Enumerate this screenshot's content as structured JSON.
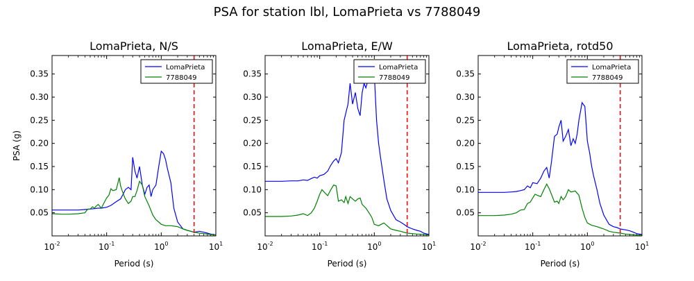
{
  "figure": {
    "title": "PSA for station lbl, LomaPrieta vs 7788049"
  },
  "chart_data": [
    {
      "type": "line",
      "title": "LomaPrieta, N/S",
      "xlabel": "Period (s)",
      "ylabel": "PSA (g)",
      "xscale": "log",
      "xlim": [
        0.01,
        10
      ],
      "ylim": [
        0.0,
        0.39
      ],
      "x_tick_labels": [
        "10^-2",
        "10^-1",
        "10^0",
        "10^1"
      ],
      "y_ticks": [
        0.05,
        0.1,
        0.15,
        0.2,
        0.25,
        0.3,
        0.35
      ],
      "y_tick_labels": [
        "0.05",
        "0.10",
        "0.15",
        "0.20",
        "0.25",
        "0.30",
        "0.35"
      ],
      "grid": false,
      "legend_position": "top-right",
      "vline": {
        "x": 4.0,
        "color": "#ff0000",
        "style": "dashed"
      },
      "series": [
        {
          "name": "LomaPrieta",
          "color": "#0000ff",
          "x": [
            0.01,
            0.02,
            0.03,
            0.04,
            0.05,
            0.06,
            0.07,
            0.08,
            0.1,
            0.12,
            0.15,
            0.18,
            0.2,
            0.22,
            0.25,
            0.28,
            0.3,
            0.33,
            0.36,
            0.4,
            0.45,
            0.5,
            0.55,
            0.6,
            0.65,
            0.7,
            0.8,
            0.9,
            1.0,
            1.1,
            1.2,
            1.3,
            1.5,
            1.7,
            2.0,
            2.5,
            3.0,
            3.5,
            4.0,
            5.0,
            6.0,
            7.0,
            8.0,
            10.0
          ],
          "y": [
            0.056,
            0.056,
            0.056,
            0.057,
            0.058,
            0.059,
            0.06,
            0.06,
            0.062,
            0.066,
            0.074,
            0.08,
            0.09,
            0.1,
            0.105,
            0.1,
            0.17,
            0.14,
            0.125,
            0.15,
            0.11,
            0.09,
            0.105,
            0.11,
            0.085,
            0.1,
            0.11,
            0.15,
            0.183,
            0.178,
            0.165,
            0.145,
            0.115,
            0.06,
            0.03,
            0.015,
            0.012,
            0.01,
            0.008,
            0.01,
            0.008,
            0.006,
            0.004,
            0.002
          ]
        },
        {
          "name": "7788049",
          "color": "#008000",
          "x": [
            0.01,
            0.015,
            0.02,
            0.03,
            0.04,
            0.045,
            0.05,
            0.055,
            0.06,
            0.065,
            0.07,
            0.08,
            0.09,
            0.1,
            0.11,
            0.12,
            0.13,
            0.15,
            0.17,
            0.18,
            0.2,
            0.22,
            0.25,
            0.28,
            0.3,
            0.33,
            0.36,
            0.4,
            0.45,
            0.5,
            0.6,
            0.7,
            0.8,
            0.9,
            1.0,
            1.2,
            1.5,
            2.0,
            2.5,
            3.0,
            4.0,
            5.0,
            6.0,
            8.0,
            10.0
          ],
          "y": [
            0.048,
            0.047,
            0.047,
            0.048,
            0.05,
            0.058,
            0.058,
            0.063,
            0.06,
            0.065,
            0.068,
            0.06,
            0.072,
            0.082,
            0.088,
            0.102,
            0.098,
            0.1,
            0.126,
            0.108,
            0.092,
            0.08,
            0.07,
            0.075,
            0.085,
            0.085,
            0.098,
            0.118,
            0.11,
            0.085,
            0.065,
            0.045,
            0.035,
            0.03,
            0.025,
            0.022,
            0.022,
            0.02,
            0.015,
            0.012,
            0.008,
            0.006,
            0.005,
            0.003,
            0.002
          ]
        }
      ]
    },
    {
      "type": "line",
      "title": "LomaPrieta, E/W",
      "xlabel": "Period (s)",
      "xscale": "log",
      "xlim": [
        0.01,
        10
      ],
      "ylim": [
        0.0,
        0.39
      ],
      "x_tick_labels": [
        "10^-2",
        "10^-1",
        "10^0",
        "10^1"
      ],
      "y_ticks": [
        0.05,
        0.1,
        0.15,
        0.2,
        0.25,
        0.3,
        0.35
      ],
      "y_tick_labels": [
        "0.05",
        "0.10",
        "0.15",
        "0.20",
        "0.25",
        "0.30",
        "0.35"
      ],
      "grid": false,
      "legend_position": "top-right",
      "vline": {
        "x": 4.0,
        "color": "#ff0000",
        "style": "dashed"
      },
      "series": [
        {
          "name": "LomaPrieta",
          "color": "#0000ff",
          "x": [
            0.01,
            0.02,
            0.03,
            0.04,
            0.05,
            0.06,
            0.07,
            0.08,
            0.09,
            0.1,
            0.12,
            0.14,
            0.16,
            0.18,
            0.2,
            0.22,
            0.25,
            0.28,
            0.3,
            0.33,
            0.36,
            0.4,
            0.45,
            0.5,
            0.55,
            0.6,
            0.65,
            0.7,
            0.8,
            0.9,
            1.0,
            1.1,
            1.2,
            1.3,
            1.5,
            1.7,
            2.0,
            2.5,
            3.0,
            3.5,
            4.0,
            5.0,
            6.0,
            7.0,
            8.0,
            10.0
          ],
          "y": [
            0.118,
            0.118,
            0.119,
            0.119,
            0.121,
            0.12,
            0.124,
            0.127,
            0.125,
            0.13,
            0.133,
            0.14,
            0.153,
            0.162,
            0.167,
            0.158,
            0.18,
            0.25,
            0.265,
            0.285,
            0.33,
            0.285,
            0.31,
            0.275,
            0.26,
            0.31,
            0.33,
            0.32,
            0.345,
            0.38,
            0.35,
            0.25,
            0.2,
            0.17,
            0.12,
            0.08,
            0.055,
            0.035,
            0.03,
            0.025,
            0.02,
            0.015,
            0.012,
            0.01,
            0.006,
            0.003
          ]
        },
        {
          "name": "7788049",
          "color": "#008000",
          "x": [
            0.01,
            0.02,
            0.03,
            0.04,
            0.05,
            0.06,
            0.07,
            0.08,
            0.09,
            0.1,
            0.11,
            0.12,
            0.14,
            0.16,
            0.18,
            0.2,
            0.22,
            0.25,
            0.28,
            0.3,
            0.33,
            0.36,
            0.4,
            0.45,
            0.5,
            0.55,
            0.6,
            0.7,
            0.8,
            0.9,
            1.0,
            1.2,
            1.5,
            2.0,
            2.5,
            3.0,
            4.0,
            5.0,
            6.0,
            8.0,
            10.0
          ],
          "y": [
            0.042,
            0.042,
            0.043,
            0.045,
            0.048,
            0.044,
            0.05,
            0.06,
            0.075,
            0.09,
            0.1,
            0.095,
            0.087,
            0.1,
            0.11,
            0.108,
            0.075,
            0.078,
            0.072,
            0.085,
            0.07,
            0.085,
            0.08,
            0.075,
            0.08,
            0.082,
            0.068,
            0.06,
            0.05,
            0.04,
            0.025,
            0.022,
            0.028,
            0.015,
            0.012,
            0.01,
            0.006,
            0.005,
            0.004,
            0.003,
            0.002
          ]
        }
      ]
    },
    {
      "type": "line",
      "title": "LomaPrieta, rotd50",
      "xlabel": "Period (s)",
      "xscale": "log",
      "xlim": [
        0.01,
        10
      ],
      "ylim": [
        0.0,
        0.39
      ],
      "x_tick_labels": [
        "10^-2",
        "10^-1",
        "10^0",
        "10^1"
      ],
      "y_ticks": [
        0.05,
        0.1,
        0.15,
        0.2,
        0.25,
        0.3,
        0.35
      ],
      "y_tick_labels": [
        "0.05",
        "0.10",
        "0.15",
        "0.20",
        "0.25",
        "0.30",
        "0.35"
      ],
      "grid": false,
      "legend_position": "top-right",
      "vline": {
        "x": 4.0,
        "color": "#ff0000",
        "style": "dashed"
      },
      "series": [
        {
          "name": "LomaPrieta",
          "color": "#0000ff",
          "x": [
            0.01,
            0.02,
            0.03,
            0.04,
            0.05,
            0.06,
            0.07,
            0.08,
            0.09,
            0.1,
            0.12,
            0.14,
            0.16,
            0.18,
            0.2,
            0.22,
            0.25,
            0.28,
            0.3,
            0.33,
            0.36,
            0.4,
            0.45,
            0.5,
            0.55,
            0.6,
            0.65,
            0.7,
            0.8,
            0.9,
            1.0,
            1.1,
            1.2,
            1.3,
            1.5,
            1.7,
            2.0,
            2.5,
            3.0,
            3.5,
            4.0,
            5.0,
            6.0,
            7.0,
            8.0,
            10.0
          ],
          "y": [
            0.094,
            0.094,
            0.094,
            0.095,
            0.096,
            0.098,
            0.1,
            0.108,
            0.104,
            0.115,
            0.113,
            0.125,
            0.14,
            0.148,
            0.125,
            0.16,
            0.215,
            0.22,
            0.235,
            0.25,
            0.205,
            0.215,
            0.23,
            0.195,
            0.21,
            0.2,
            0.22,
            0.25,
            0.288,
            0.28,
            0.205,
            0.18,
            0.15,
            0.13,
            0.1,
            0.07,
            0.045,
            0.025,
            0.02,
            0.018,
            0.015,
            0.013,
            0.011,
            0.008,
            0.005,
            0.003
          ]
        },
        {
          "name": "7788049",
          "color": "#008000",
          "x": [
            0.01,
            0.02,
            0.03,
            0.04,
            0.05,
            0.06,
            0.07,
            0.08,
            0.09,
            0.1,
            0.11,
            0.12,
            0.14,
            0.16,
            0.18,
            0.2,
            0.22,
            0.25,
            0.28,
            0.3,
            0.33,
            0.36,
            0.4,
            0.45,
            0.5,
            0.6,
            0.7,
            0.8,
            0.9,
            1.0,
            1.2,
            1.5,
            2.0,
            2.5,
            3.0,
            4.0,
            5.0,
            6.0,
            8.0,
            10.0
          ],
          "y": [
            0.044,
            0.044,
            0.045,
            0.047,
            0.05,
            0.056,
            0.057,
            0.07,
            0.073,
            0.082,
            0.09,
            0.088,
            0.085,
            0.1,
            0.112,
            0.102,
            0.09,
            0.073,
            0.075,
            0.07,
            0.085,
            0.078,
            0.085,
            0.1,
            0.095,
            0.097,
            0.088,
            0.06,
            0.04,
            0.028,
            0.023,
            0.02,
            0.015,
            0.01,
            0.008,
            0.006,
            0.004,
            0.003,
            0.002,
            0.002
          ]
        }
      ]
    }
  ]
}
